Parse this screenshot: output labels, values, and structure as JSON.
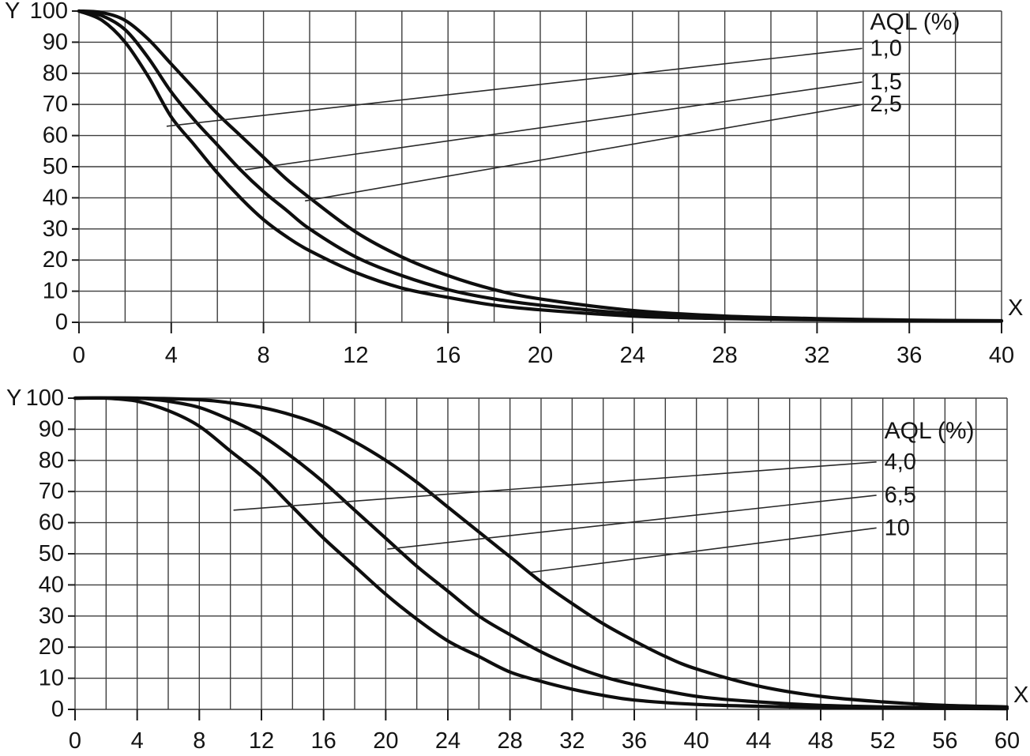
{
  "page": {
    "background": "#ffffff"
  },
  "colors": {
    "grid": "#3d3d3d",
    "curve": "#0e0e0e",
    "text": "#141414"
  },
  "chart_data": [
    {
      "id": "oc-chart-top",
      "type": "line",
      "title": "",
      "xlabel": "X",
      "ylabel": "Y",
      "xlim": [
        0,
        40
      ],
      "ylim": [
        0,
        100
      ],
      "x_grid_step": 2,
      "y_grid_step": 10,
      "x_ticks": [
        0,
        4,
        8,
        12,
        16,
        20,
        24,
        28,
        32,
        36,
        40
      ],
      "y_ticks": [
        0,
        10,
        20,
        30,
        40,
        50,
        60,
        70,
        80,
        90,
        100
      ],
      "grid": true,
      "legend": {
        "title": "AQL (%)",
        "position": "top-right",
        "x": 34.3,
        "title_y": 96.5,
        "items": [
          {
            "label": "1,0",
            "label_y": 88,
            "attach": [
              3.8,
              63
            ]
          },
          {
            "label": "1,5",
            "label_y": 77.2,
            "attach": [
              7.2,
              49
            ]
          },
          {
            "label": "2,5",
            "label_y": 70,
            "attach": [
              9.8,
              39
            ]
          }
        ]
      },
      "series": [
        {
          "name": "AQL 1,0",
          "points": [
            [
              0,
              100
            ],
            [
              1,
              97
            ],
            [
              2,
              90
            ],
            [
              3,
              79
            ],
            [
              4,
              66
            ],
            [
              5,
              57
            ],
            [
              6,
              48
            ],
            [
              7,
              40
            ],
            [
              8,
              33
            ],
            [
              9,
              27.5
            ],
            [
              10,
              23
            ],
            [
              12,
              16
            ],
            [
              14,
              11
            ],
            [
              16,
              8
            ],
            [
              18,
              5.5
            ],
            [
              20,
              4
            ],
            [
              24,
              2
            ],
            [
              28,
              1.2
            ],
            [
              32,
              0.8
            ],
            [
              36,
              0.5
            ],
            [
              40,
              0.4
            ]
          ]
        },
        {
          "name": "AQL 1,5",
          "points": [
            [
              0,
              100
            ],
            [
              1,
              98.5
            ],
            [
              2,
              94
            ],
            [
              3,
              85
            ],
            [
              4,
              74
            ],
            [
              5,
              65
            ],
            [
              6,
              57
            ],
            [
              7,
              49
            ],
            [
              8,
              42
            ],
            [
              9,
              36
            ],
            [
              10,
              30
            ],
            [
              12,
              21
            ],
            [
              14,
              15
            ],
            [
              16,
              10.5
            ],
            [
              18,
              7.5
            ],
            [
              20,
              5.5
            ],
            [
              24,
              2.8
            ],
            [
              28,
              1.6
            ],
            [
              32,
              1
            ],
            [
              36,
              0.6
            ],
            [
              40,
              0.4
            ]
          ]
        },
        {
          "name": "AQL 2,5",
          "points": [
            [
              0,
              100
            ],
            [
              1,
              99.5
            ],
            [
              2,
              97
            ],
            [
              3,
              91
            ],
            [
              4,
              83
            ],
            [
              5,
              75
            ],
            [
              6,
              67
            ],
            [
              7,
              60
            ],
            [
              8,
              53
            ],
            [
              9,
              46
            ],
            [
              10,
              40
            ],
            [
              12,
              29
            ],
            [
              14,
              21
            ],
            [
              16,
              15
            ],
            [
              18,
              10.5
            ],
            [
              20,
              7.5
            ],
            [
              24,
              3.8
            ],
            [
              28,
              2
            ],
            [
              32,
              1.2
            ],
            [
              36,
              0.7
            ],
            [
              40,
              0.5
            ]
          ]
        }
      ]
    },
    {
      "id": "oc-chart-bottom",
      "type": "line",
      "title": "",
      "xlabel": "X",
      "ylabel": "Y",
      "xlim": [
        0,
        60
      ],
      "ylim": [
        0,
        100
      ],
      "x_grid_step": 2,
      "y_grid_step": 10,
      "x_ticks": [
        0,
        4,
        8,
        12,
        16,
        20,
        24,
        28,
        32,
        36,
        40,
        44,
        48,
        52,
        56,
        60
      ],
      "y_ticks": [
        0,
        10,
        20,
        30,
        40,
        50,
        60,
        70,
        80,
        90,
        100
      ],
      "grid": true,
      "legend": {
        "title": "AQL (%)",
        "position": "top-right",
        "x": 52.1,
        "title_y": 89.5,
        "items": [
          {
            "label": "4,0",
            "label_y": 79.5,
            "attach": [
              10.2,
              64
            ]
          },
          {
            "label": "6,5",
            "label_y": 68.8,
            "attach": [
              20.1,
              51.5
            ]
          },
          {
            "label": "10",
            "label_y": 58.3,
            "attach": [
              29.3,
              44
            ]
          }
        ]
      },
      "series": [
        {
          "name": "AQL 4,0",
          "points": [
            [
              0,
              100
            ],
            [
              2,
              100
            ],
            [
              4,
              99
            ],
            [
              6,
              96
            ],
            [
              8,
              91
            ],
            [
              10,
              83
            ],
            [
              12,
              75
            ],
            [
              14,
              65
            ],
            [
              16,
              55
            ],
            [
              18,
              46
            ],
            [
              20,
              37
            ],
            [
              22,
              29
            ],
            [
              24,
              22
            ],
            [
              26,
              17
            ],
            [
              28,
              12
            ],
            [
              30,
              9
            ],
            [
              32,
              6.5
            ],
            [
              34,
              4.5
            ],
            [
              36,
              3
            ],
            [
              40,
              1.6
            ],
            [
              44,
              1
            ],
            [
              48,
              0.6
            ],
            [
              52,
              0.4
            ],
            [
              56,
              0.3
            ],
            [
              60,
              0.2
            ]
          ]
        },
        {
          "name": "AQL 6,5",
          "points": [
            [
              0,
              100
            ],
            [
              4,
              100
            ],
            [
              6,
              99
            ],
            [
              8,
              97
            ],
            [
              10,
              93
            ],
            [
              12,
              88
            ],
            [
              14,
              81
            ],
            [
              16,
              73
            ],
            [
              18,
              64
            ],
            [
              20,
              55
            ],
            [
              22,
              46
            ],
            [
              24,
              38
            ],
            [
              26,
              30
            ],
            [
              28,
              24
            ],
            [
              30,
              18.5
            ],
            [
              32,
              14
            ],
            [
              34,
              10.5
            ],
            [
              36,
              8
            ],
            [
              40,
              4.2
            ],
            [
              44,
              2.4
            ],
            [
              48,
              1.3
            ],
            [
              52,
              0.8
            ],
            [
              56,
              0.5
            ],
            [
              60,
              0.3
            ]
          ]
        },
        {
          "name": "AQL 10",
          "points": [
            [
              0,
              100
            ],
            [
              4,
              100
            ],
            [
              8,
              99.5
            ],
            [
              10,
              98.5
            ],
            [
              12,
              97
            ],
            [
              14,
              94.5
            ],
            [
              16,
              91
            ],
            [
              18,
              86
            ],
            [
              20,
              80
            ],
            [
              22,
              73
            ],
            [
              24,
              65
            ],
            [
              26,
              57
            ],
            [
              28,
              49
            ],
            [
              30,
              41
            ],
            [
              32,
              34
            ],
            [
              34,
              27.5
            ],
            [
              36,
              22
            ],
            [
              38,
              17
            ],
            [
              40,
              13
            ],
            [
              44,
              7.5
            ],
            [
              48,
              4.2
            ],
            [
              52,
              2.4
            ],
            [
              56,
              1.3
            ],
            [
              60,
              0.8
            ]
          ]
        }
      ]
    }
  ]
}
